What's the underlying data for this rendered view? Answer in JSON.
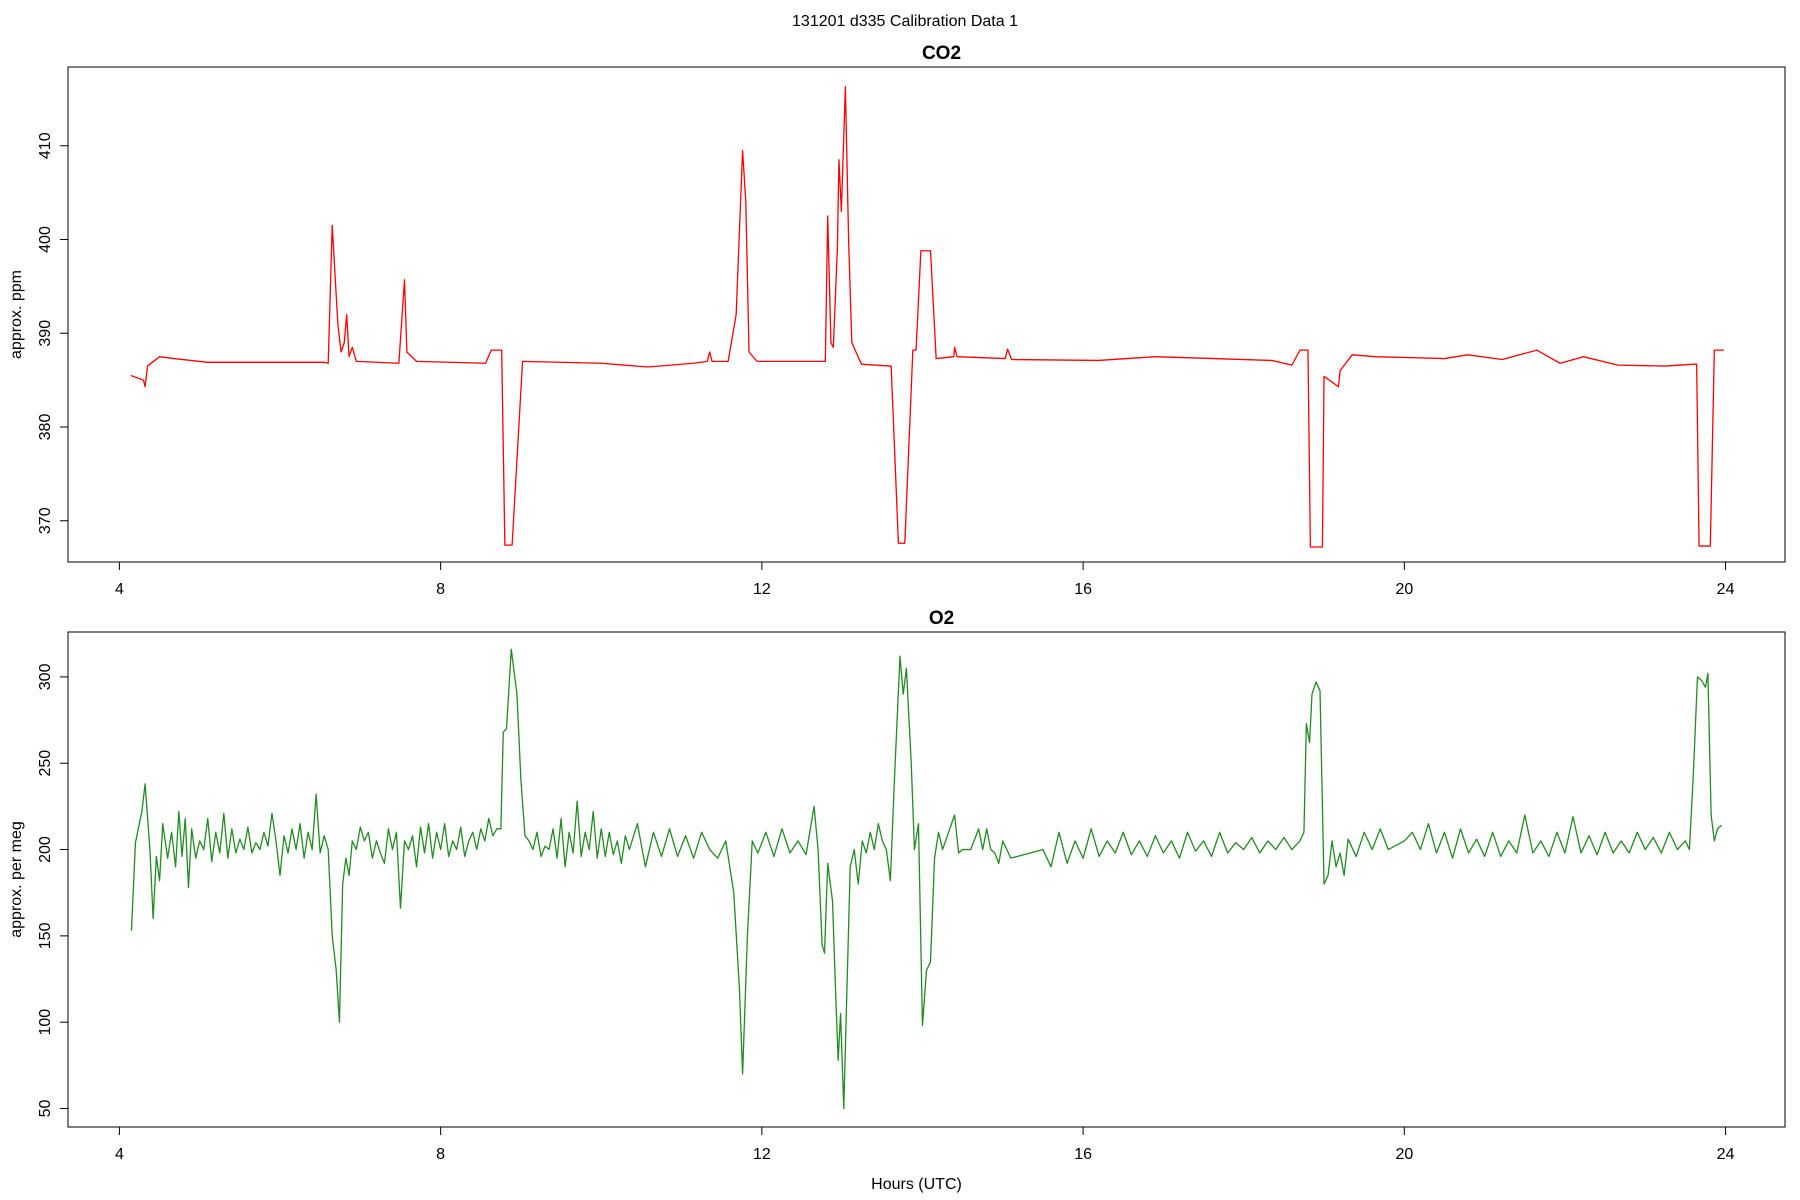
{
  "title": "131201   d335   Calibration Data 1",
  "chart_data": [
    {
      "type": "line",
      "title": "CO2",
      "ylabel": "approx. ppm",
      "color": "#ff0000",
      "xlim": [
        3.36,
        24.74
      ],
      "xticks": [
        4,
        8,
        12,
        16,
        20,
        24
      ],
      "ylim": [
        365.6,
        418.4
      ],
      "yticks": [
        370,
        380,
        390,
        400,
        410
      ],
      "x": [
        4.14,
        4.3,
        4.32,
        4.35,
        4.5,
        4.68,
        5.1,
        6.55,
        6.6,
        6.65,
        6.72,
        6.76,
        6.8,
        6.83,
        6.86,
        6.9,
        6.95,
        7.48,
        7.55,
        7.58,
        7.7,
        8.56,
        8.63,
        8.76,
        8.8,
        8.89,
        9.02,
        10.0,
        10.58,
        11.15,
        11.32,
        11.35,
        11.38,
        11.58,
        11.68,
        11.76,
        11.8,
        11.84,
        11.94,
        12.59,
        12.79,
        12.82,
        12.86,
        12.89,
        12.94,
        12.96,
        12.99,
        13.04,
        13.08,
        13.12,
        13.24,
        13.6,
        13.61,
        13.7,
        13.78,
        13.88,
        13.92,
        13.98,
        14.1,
        14.17,
        14.39,
        14.4,
        14.43,
        15.03,
        15.06,
        15.11,
        16.19,
        16.9,
        17.63,
        18.35,
        18.6,
        18.7,
        18.8,
        18.83,
        18.98,
        19.0,
        19.18,
        19.2,
        19.35,
        19.64,
        20.5,
        20.79,
        21.22,
        21.65,
        21.94,
        22.23,
        22.66,
        23.24,
        23.61,
        23.64,
        23.67,
        23.81,
        23.86,
        23.98
      ],
      "values": [
        385.5,
        385,
        384.3,
        386.5,
        387.5,
        387.3,
        386.9,
        386.9,
        386.8,
        401.5,
        391,
        388,
        389,
        392,
        387.5,
        388.5,
        387,
        386.8,
        395.7,
        388,
        387,
        386.8,
        388.2,
        388.2,
        367.4,
        367.4,
        387,
        386.8,
        386.4,
        386.8,
        387,
        388,
        387,
        387,
        392,
        409.5,
        404,
        388,
        387,
        387,
        387,
        402.5,
        389,
        388.5,
        399,
        408.5,
        403,
        416.3,
        400,
        389,
        386.7,
        386.5,
        386.5,
        367.6,
        367.6,
        388.2,
        388.2,
        398.8,
        398.8,
        387.3,
        387.5,
        388.5,
        387.5,
        387.3,
        388.3,
        387.2,
        387.1,
        387.5,
        387.3,
        387.1,
        386.6,
        388.2,
        388.2,
        367.2,
        367.2,
        385.4,
        384.3,
        386,
        387.7,
        387.5,
        387.3,
        387.7,
        387.2,
        388.2,
        386.8,
        387.5,
        386.6,
        386.5,
        386.7,
        386.7,
        367.3,
        367.3,
        388.2,
        388.2
      ]
    },
    {
      "type": "line",
      "title": "O2",
      "ylabel": "approx. per meg",
      "xlabel": "Hours (UTC)",
      "color": "#228b22",
      "xlim": [
        3.36,
        24.74
      ],
      "xticks": [
        4,
        8,
        12,
        16,
        20,
        24
      ],
      "ylim": [
        39.3,
        326
      ],
      "yticks": [
        50,
        100,
        150,
        200,
        250,
        300
      ],
      "x": [
        4.15,
        4.2,
        4.28,
        4.32,
        4.38,
        4.42,
        4.46,
        4.5,
        4.54,
        4.6,
        4.65,
        4.7,
        4.74,
        4.78,
        4.82,
        4.86,
        4.9,
        4.95,
        5.0,
        5.05,
        5.1,
        5.15,
        5.2,
        5.25,
        5.3,
        5.35,
        5.4,
        5.45,
        5.5,
        5.55,
        5.6,
        5.65,
        5.7,
        5.75,
        5.8,
        5.85,
        5.9,
        5.95,
        6.0,
        6.05,
        6.1,
        6.15,
        6.2,
        6.25,
        6.3,
        6.35,
        6.4,
        6.45,
        6.5,
        6.55,
        6.6,
        6.65,
        6.7,
        6.74,
        6.78,
        6.82,
        6.86,
        6.9,
        6.95,
        7.0,
        7.05,
        7.1,
        7.15,
        7.2,
        7.25,
        7.3,
        7.35,
        7.4,
        7.45,
        7.5,
        7.55,
        7.6,
        7.65,
        7.7,
        7.75,
        7.8,
        7.85,
        7.9,
        7.95,
        8.0,
        8.05,
        8.1,
        8.15,
        8.2,
        8.25,
        8.3,
        8.35,
        8.4,
        8.45,
        8.5,
        8.55,
        8.6,
        8.65,
        8.7,
        8.75,
        8.78,
        8.82,
        8.88,
        8.95,
        9.0,
        9.05,
        9.1,
        9.15,
        9.2,
        9.25,
        9.3,
        9.35,
        9.4,
        9.45,
        9.5,
        9.55,
        9.6,
        9.65,
        9.7,
        9.75,
        9.8,
        9.85,
        9.9,
        9.95,
        10.0,
        10.05,
        10.1,
        10.15,
        10.2,
        10.25,
        10.3,
        10.35,
        10.45,
        10.55,
        10.65,
        10.75,
        10.85,
        10.95,
        11.05,
        11.15,
        11.25,
        11.35,
        11.45,
        11.55,
        11.65,
        11.72,
        11.76,
        11.82,
        11.88,
        11.95,
        12.05,
        12.15,
        12.25,
        12.35,
        12.45,
        12.55,
        12.65,
        12.7,
        12.75,
        12.78,
        12.82,
        12.88,
        12.92,
        12.95,
        12.98,
        13.02,
        13.06,
        13.1,
        13.15,
        13.2,
        13.25,
        13.3,
        13.35,
        13.4,
        13.45,
        13.5,
        13.55,
        13.6,
        13.65,
        13.72,
        13.76,
        13.8,
        13.86,
        13.9,
        13.95,
        14.0,
        14.05,
        14.1,
        14.15,
        14.2,
        14.25,
        14.4,
        14.45,
        14.5,
        14.6,
        14.7,
        14.75,
        14.8,
        14.85,
        14.9,
        14.95,
        15.0,
        15.1,
        15.5,
        15.6,
        15.7,
        15.8,
        15.9,
        16.0,
        16.1,
        16.2,
        16.3,
        16.4,
        16.5,
        16.6,
        16.7,
        16.8,
        16.9,
        17.0,
        17.1,
        17.2,
        17.3,
        17.4,
        17.5,
        17.6,
        17.7,
        17.8,
        17.9,
        18.0,
        18.1,
        18.2,
        18.3,
        18.4,
        18.5,
        18.6,
        18.7,
        18.75,
        18.78,
        18.82,
        18.85,
        18.9,
        18.95,
        19.0,
        19.05,
        19.1,
        19.15,
        19.2,
        19.25,
        19.3,
        19.4,
        19.5,
        19.6,
        19.7,
        19.8,
        20.0,
        20.1,
        20.2,
        20.3,
        20.4,
        20.5,
        20.6,
        20.7,
        20.8,
        20.9,
        21.0,
        21.1,
        21.2,
        21.3,
        21.4,
        21.5,
        21.6,
        21.7,
        21.8,
        21.9,
        22.0,
        22.1,
        22.2,
        22.3,
        22.4,
        22.5,
        22.6,
        22.7,
        22.8,
        22.9,
        23.0,
        23.1,
        23.2,
        23.3,
        23.4,
        23.5,
        23.55,
        23.6,
        23.65,
        23.7,
        23.75,
        23.78,
        23.82,
        23.86,
        23.9,
        23.95
      ],
      "values": [
        153,
        204,
        222,
        238,
        200,
        160,
        196,
        182,
        215,
        195,
        210,
        190,
        222,
        196,
        218,
        178,
        212,
        195,
        205,
        200,
        218,
        193,
        210,
        198,
        221,
        195,
        212,
        198,
        206,
        200,
        213,
        198,
        204,
        200,
        210,
        202,
        221,
        205,
        185,
        208,
        198,
        212,
        200,
        215,
        195,
        210,
        200,
        232,
        198,
        208,
        200,
        150,
        130,
        100,
        180,
        195,
        185,
        205,
        200,
        213,
        205,
        210,
        195,
        205,
        198,
        192,
        212,
        200,
        210,
        166,
        205,
        200,
        208,
        190,
        213,
        198,
        215,
        195,
        210,
        200,
        215,
        196,
        205,
        200,
        213,
        196,
        205,
        210,
        200,
        212,
        205,
        218,
        208,
        212,
        212,
        268,
        270,
        316,
        290,
        240,
        208,
        205,
        200,
        210,
        196,
        202,
        200,
        212,
        195,
        218,
        190,
        210,
        198,
        228,
        196,
        210,
        200,
        222,
        195,
        212,
        196,
        210,
        197,
        205,
        192,
        208,
        200,
        215,
        190,
        210,
        196,
        212,
        196,
        208,
        195,
        210,
        200,
        195,
        205,
        175,
        120,
        70,
        150,
        205,
        198,
        210,
        196,
        212,
        198,
        205,
        197,
        225,
        200,
        145,
        140,
        192,
        170,
        115,
        78,
        105,
        50,
        120,
        190,
        200,
        180,
        205,
        198,
        210,
        200,
        215,
        205,
        200,
        182,
        240,
        312,
        290,
        305,
        250,
        200,
        215,
        98,
        130,
        135,
        195,
        210,
        200,
        220,
        198,
        200,
        200,
        212,
        200,
        212,
        200,
        198,
        192,
        205,
        195,
        200,
        190,
        210,
        192,
        205,
        195,
        212,
        196,
        205,
        198,
        210,
        197,
        205,
        196,
        208,
        198,
        205,
        195,
        210,
        199,
        205,
        196,
        210,
        198,
        204,
        200,
        207,
        198,
        205,
        200,
        207,
        200,
        205,
        210,
        273,
        262,
        290,
        297,
        292,
        180,
        185,
        205,
        190,
        198,
        185,
        206,
        196,
        210,
        200,
        212,
        200,
        205,
        210,
        200,
        215,
        198,
        210,
        195,
        212,
        198,
        206,
        196,
        210,
        196,
        205,
        198,
        220,
        198,
        205,
        196,
        210,
        198,
        219,
        198,
        208,
        197,
        210,
        198,
        205,
        198,
        210,
        200,
        207,
        198,
        210,
        200,
        205,
        200,
        245,
        300,
        298,
        294,
        302,
        220,
        205,
        212,
        214
      ]
    }
  ]
}
